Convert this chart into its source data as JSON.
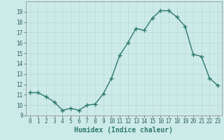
{
  "x": [
    0,
    1,
    2,
    3,
    4,
    5,
    6,
    7,
    8,
    9,
    10,
    11,
    12,
    13,
    14,
    15,
    16,
    17,
    18,
    19,
    20,
    21,
    22,
    23
  ],
  "y": [
    11.2,
    11.2,
    10.8,
    10.3,
    9.5,
    9.7,
    9.5,
    10.0,
    10.1,
    11.1,
    12.6,
    14.8,
    16.0,
    17.4,
    17.2,
    18.4,
    19.1,
    19.1,
    18.5,
    17.6,
    14.9,
    14.7,
    12.6,
    11.9
  ],
  "line_color": "#2d7a6e",
  "marker": "+",
  "marker_size": 4,
  "bg_color": "#cceae8",
  "grid_color_major": "#b8d8d6",
  "grid_color_minor": "#d4eceb",
  "xlabel": "Humidex (Indice chaleur)",
  "xlabel_fontsize": 7,
  "xlim": [
    -0.5,
    23.5
  ],
  "ylim": [
    9,
    20
  ],
  "yticks": [
    9,
    10,
    11,
    12,
    13,
    14,
    15,
    16,
    17,
    18,
    19
  ],
  "xticks": [
    0,
    1,
    2,
    3,
    4,
    5,
    6,
    7,
    8,
    9,
    10,
    11,
    12,
    13,
    14,
    15,
    16,
    17,
    18,
    19,
    20,
    21,
    22,
    23
  ],
  "tick_fontsize": 5.5,
  "line_width": 1.0
}
